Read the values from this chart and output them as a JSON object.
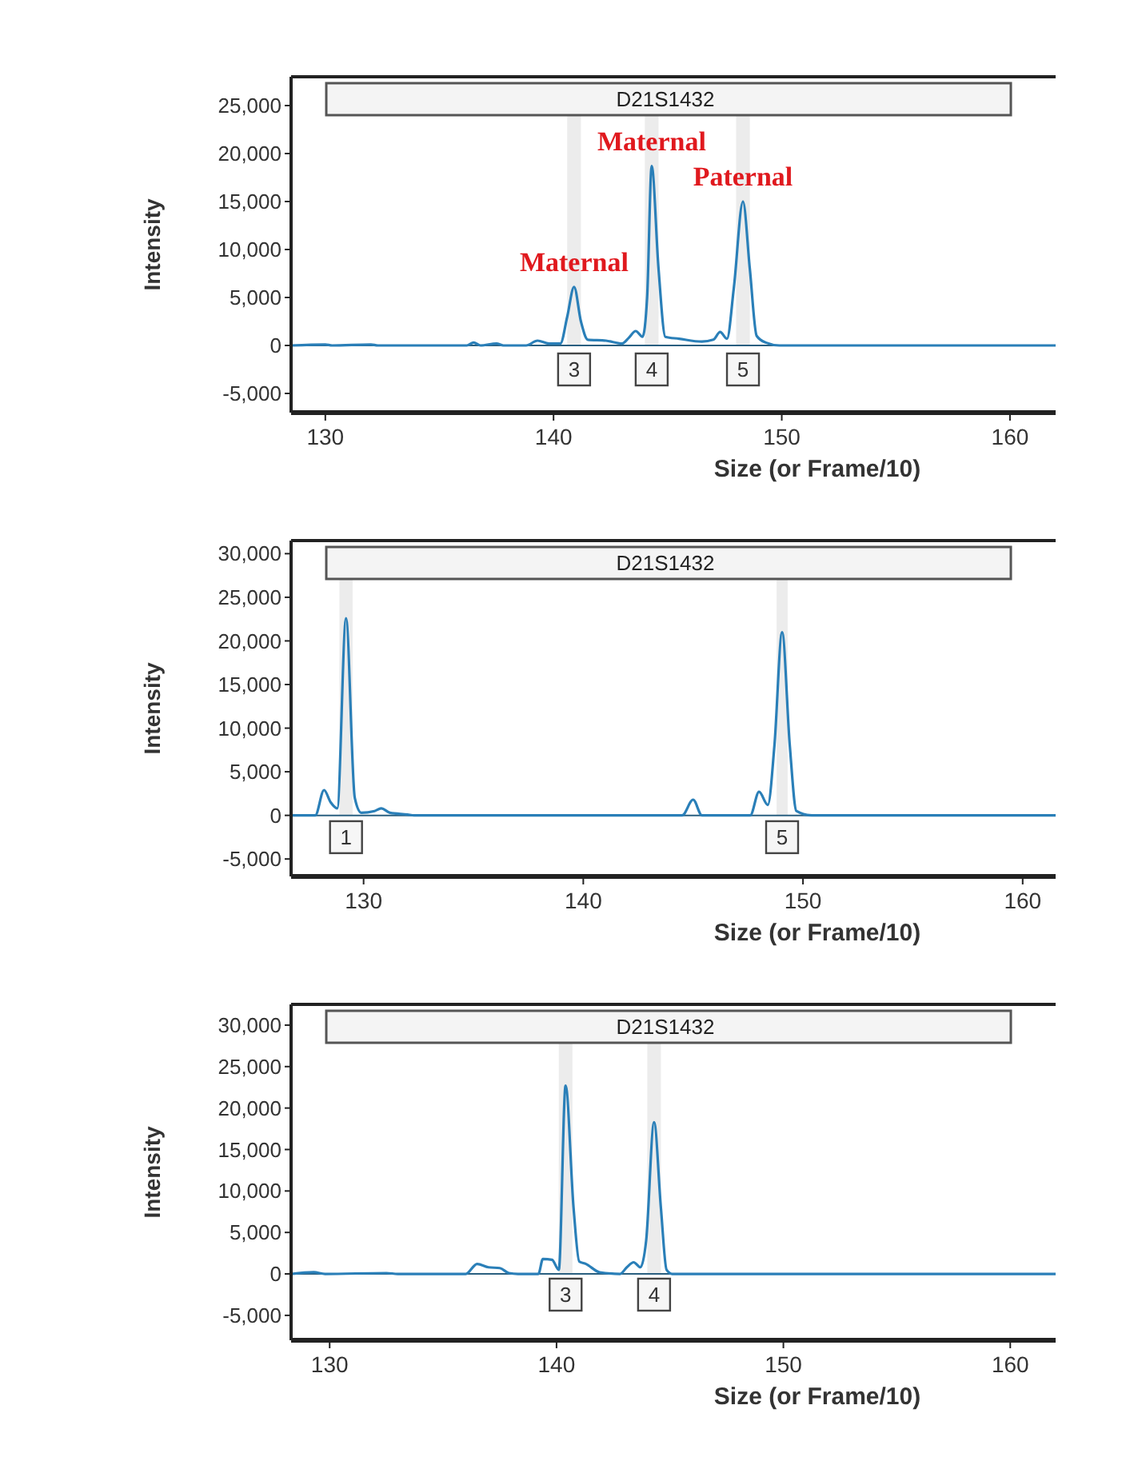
{
  "chart_data": [
    {
      "type": "line",
      "xlabel": "Size (or Frame/10)",
      "ylabel": "Intensity",
      "xlim": [
        128.5,
        162
      ],
      "xticks": [
        130,
        140,
        150,
        160
      ],
      "ylim": [
        -7000,
        28000
      ],
      "yticks": [
        {
          "value": -5000,
          "label": "-5,000"
        },
        {
          "value": 0,
          "label": "0"
        },
        {
          "value": 5000,
          "label": "5,000"
        },
        {
          "value": 10000,
          "label": "10,000"
        },
        {
          "value": 15000,
          "label": "15,000"
        },
        {
          "value": 20000,
          "label": "20,000"
        },
        {
          "value": 25000,
          "label": "25,000"
        }
      ],
      "grid": false,
      "marker": "none",
      "line_style": "solid",
      "ref_lines": [
        {
          "axis": "y",
          "value": 0,
          "color": "#2a5f80"
        }
      ],
      "series": [
        {
          "color": "#2a7fb8",
          "x": [
            128.5,
            130,
            130.3,
            132,
            132.3,
            136.2,
            136.5,
            136.8,
            137.5,
            137.8,
            138.8,
            139.3,
            139.8,
            140.3,
            140.6,
            140.9,
            141.2,
            141.5,
            142.3,
            143,
            143.3,
            143.6,
            143.9,
            144.1,
            144.3,
            144.6,
            144.9,
            145.5,
            146.5,
            147,
            147.3,
            147.6,
            147.9,
            148.3,
            148.6,
            148.9,
            149.3,
            149.9,
            162
          ],
          "values": [
            0,
            100,
            0,
            100,
            0,
            0,
            300,
            0,
            200,
            0,
            0,
            500,
            200,
            200,
            3000,
            6100,
            2500,
            600,
            500,
            200,
            800,
            1500,
            900,
            5000,
            18700,
            8000,
            900,
            700,
            400,
            600,
            1400,
            700,
            6000,
            15000,
            8000,
            1000,
            300,
            0,
            0
          ]
        }
      ],
      "bands": [
        {
          "axis": "x",
          "from": 140.6,
          "to": 141.2,
          "color": "#ececec"
        },
        {
          "axis": "x",
          "from": 144.0,
          "to": 144.6,
          "color": "#ececec"
        },
        {
          "axis": "x",
          "from": 148.0,
          "to": 148.6,
          "color": "#ececec"
        }
      ],
      "annotations": [
        "D21S1432",
        {
          "text": "Maternal",
          "x": 140.9,
          "y": 6100
        },
        {
          "text": "Maternal",
          "x": 144.3,
          "y": 18700
        },
        {
          "text": "Paternal",
          "x": 148.3,
          "y": 15000
        },
        {
          "text": "3",
          "x": 140.9,
          "y": -2500
        },
        {
          "text": "4",
          "x": 144.3,
          "y": -2500
        },
        {
          "text": "5",
          "x": 148.3,
          "y": -2500
        }
      ]
    },
    {
      "type": "line",
      "xlabel": "Size (or Frame/10)",
      "ylabel": "Intensity",
      "xlim": [
        126.7,
        161.5
      ],
      "xticks": [
        130,
        140,
        150,
        160
      ],
      "ylim": [
        -7000,
        31500
      ],
      "yticks": [
        {
          "value": -5000,
          "label": "-5,000"
        },
        {
          "value": 0,
          "label": "0"
        },
        {
          "value": 5000,
          "label": "5,000"
        },
        {
          "value": 10000,
          "label": "10,000"
        },
        {
          "value": 15000,
          "label": "15,000"
        },
        {
          "value": 20000,
          "label": "20,000"
        },
        {
          "value": 25000,
          "label": "25,000"
        },
        {
          "value": 30000,
          "label": "30,000"
        }
      ],
      "grid": false,
      "marker": "none",
      "line_style": "solid",
      "ref_lines": [
        {
          "axis": "y",
          "value": 0,
          "color": "#2a5f80"
        }
      ],
      "series": [
        {
          "color": "#2a7fb8",
          "x": [
            126.7,
            127.8,
            128.2,
            128.5,
            128.8,
            129.2,
            129.6,
            129.9,
            130.5,
            130.8,
            131.2,
            132,
            132.3,
            144.5,
            145,
            145.4,
            147.6,
            148,
            148.4,
            148.7,
            149.05,
            149.4,
            149.7,
            150.4,
            161.5
          ],
          "values": [
            0,
            0,
            2900,
            1500,
            800,
            22600,
            2000,
            300,
            500,
            800,
            300,
            100,
            0,
            0,
            1800,
            0,
            0,
            2700,
            1200,
            8000,
            21000,
            8000,
            500,
            0,
            0
          ]
        }
      ],
      "bands": [
        {
          "axis": "x",
          "from": 128.9,
          "to": 129.5,
          "color": "#ececec"
        },
        {
          "axis": "x",
          "from": 148.8,
          "to": 149.3,
          "color": "#ececec"
        }
      ],
      "annotations": [
        "D21S1432",
        {
          "text": "1",
          "x": 129.2,
          "y": -2500
        },
        {
          "text": "5",
          "x": 149.05,
          "y": -2500
        }
      ]
    },
    {
      "type": "line",
      "xlabel": "Size (or Frame/10)",
      "ylabel": "Intensity",
      "xlim": [
        128.3,
        162
      ],
      "xticks": [
        130,
        140,
        150,
        160
      ],
      "ylim": [
        -8000,
        32500
      ],
      "yticks": [
        {
          "value": -5000,
          "label": "-5,000"
        },
        {
          "value": 0,
          "label": "0"
        },
        {
          "value": 5000,
          "label": "5,000"
        },
        {
          "value": 10000,
          "label": "10,000"
        },
        {
          "value": 15000,
          "label": "15,000"
        },
        {
          "value": 20000,
          "label": "20,000"
        },
        {
          "value": 25000,
          "label": "25,000"
        },
        {
          "value": 30000,
          "label": "30,000"
        }
      ],
      "grid": false,
      "marker": "none",
      "line_style": "solid",
      "ref_lines": [
        {
          "axis": "y",
          "value": 0,
          "color": "#2a5f80"
        }
      ],
      "series": [
        {
          "color": "#2a7fb8",
          "x": [
            128.3,
            129.3,
            129.8,
            132.5,
            133,
            136,
            136.5,
            137,
            137.5,
            137.9,
            138.3,
            139.2,
            139.4,
            139.8,
            140.1,
            140.4,
            140.75,
            141,
            141.3,
            141.9,
            142.8,
            143.1,
            143.4,
            143.7,
            143.95,
            144.3,
            144.6,
            144.85,
            145.1,
            162
          ],
          "values": [
            0,
            200,
            0,
            100,
            0,
            0,
            1200,
            800,
            700,
            100,
            0,
            0,
            1800,
            1700,
            500,
            22700,
            8000,
            1500,
            1200,
            200,
            0,
            800,
            1400,
            800,
            4000,
            18300,
            8000,
            500,
            0,
            0
          ]
        }
      ],
      "bands": [
        {
          "axis": "x",
          "from": 140.1,
          "to": 140.7,
          "color": "#ececec"
        },
        {
          "axis": "x",
          "from": 144.0,
          "to": 144.6,
          "color": "#ececec"
        }
      ],
      "annotations": [
        "D21S1432",
        {
          "text": "3",
          "x": 140.4,
          "y": -2500
        },
        {
          "text": "4",
          "x": 144.3,
          "y": -2500
        }
      ]
    }
  ]
}
